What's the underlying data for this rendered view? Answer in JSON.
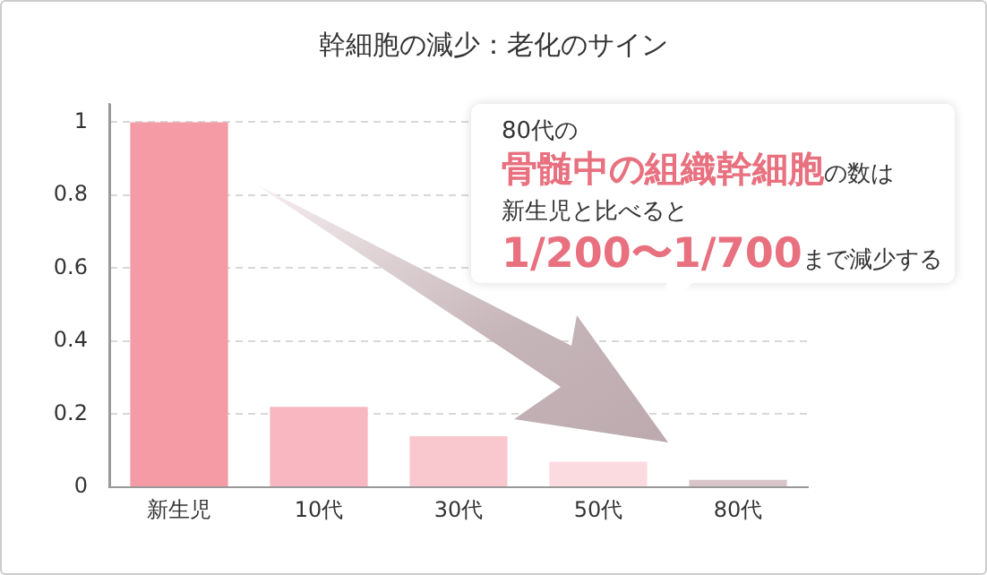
{
  "chart_data": {
    "type": "bar",
    "title": "幹細胞の減少：老化のサイン",
    "categories": [
      "新生児",
      "10代",
      "30代",
      "50代",
      "80代"
    ],
    "values": [
      1,
      0.22,
      0.14,
      0.07,
      0.02
    ],
    "colors": [
      "#f49ba6",
      "#f8b7c1",
      "#f9c8cf",
      "#fbdbe0",
      "#d7c5c9"
    ],
    "ylim": [
      0,
      1.05
    ],
    "yticks": [
      0,
      0.2,
      0.4,
      0.6,
      0.8,
      1
    ],
    "grid": "y",
    "annotations": [
      "80代の",
      "骨髄中の組織幹細胞",
      "の数は",
      "新生児と比べると",
      "1/200〜1/700",
      "まで減少する"
    ]
  }
}
